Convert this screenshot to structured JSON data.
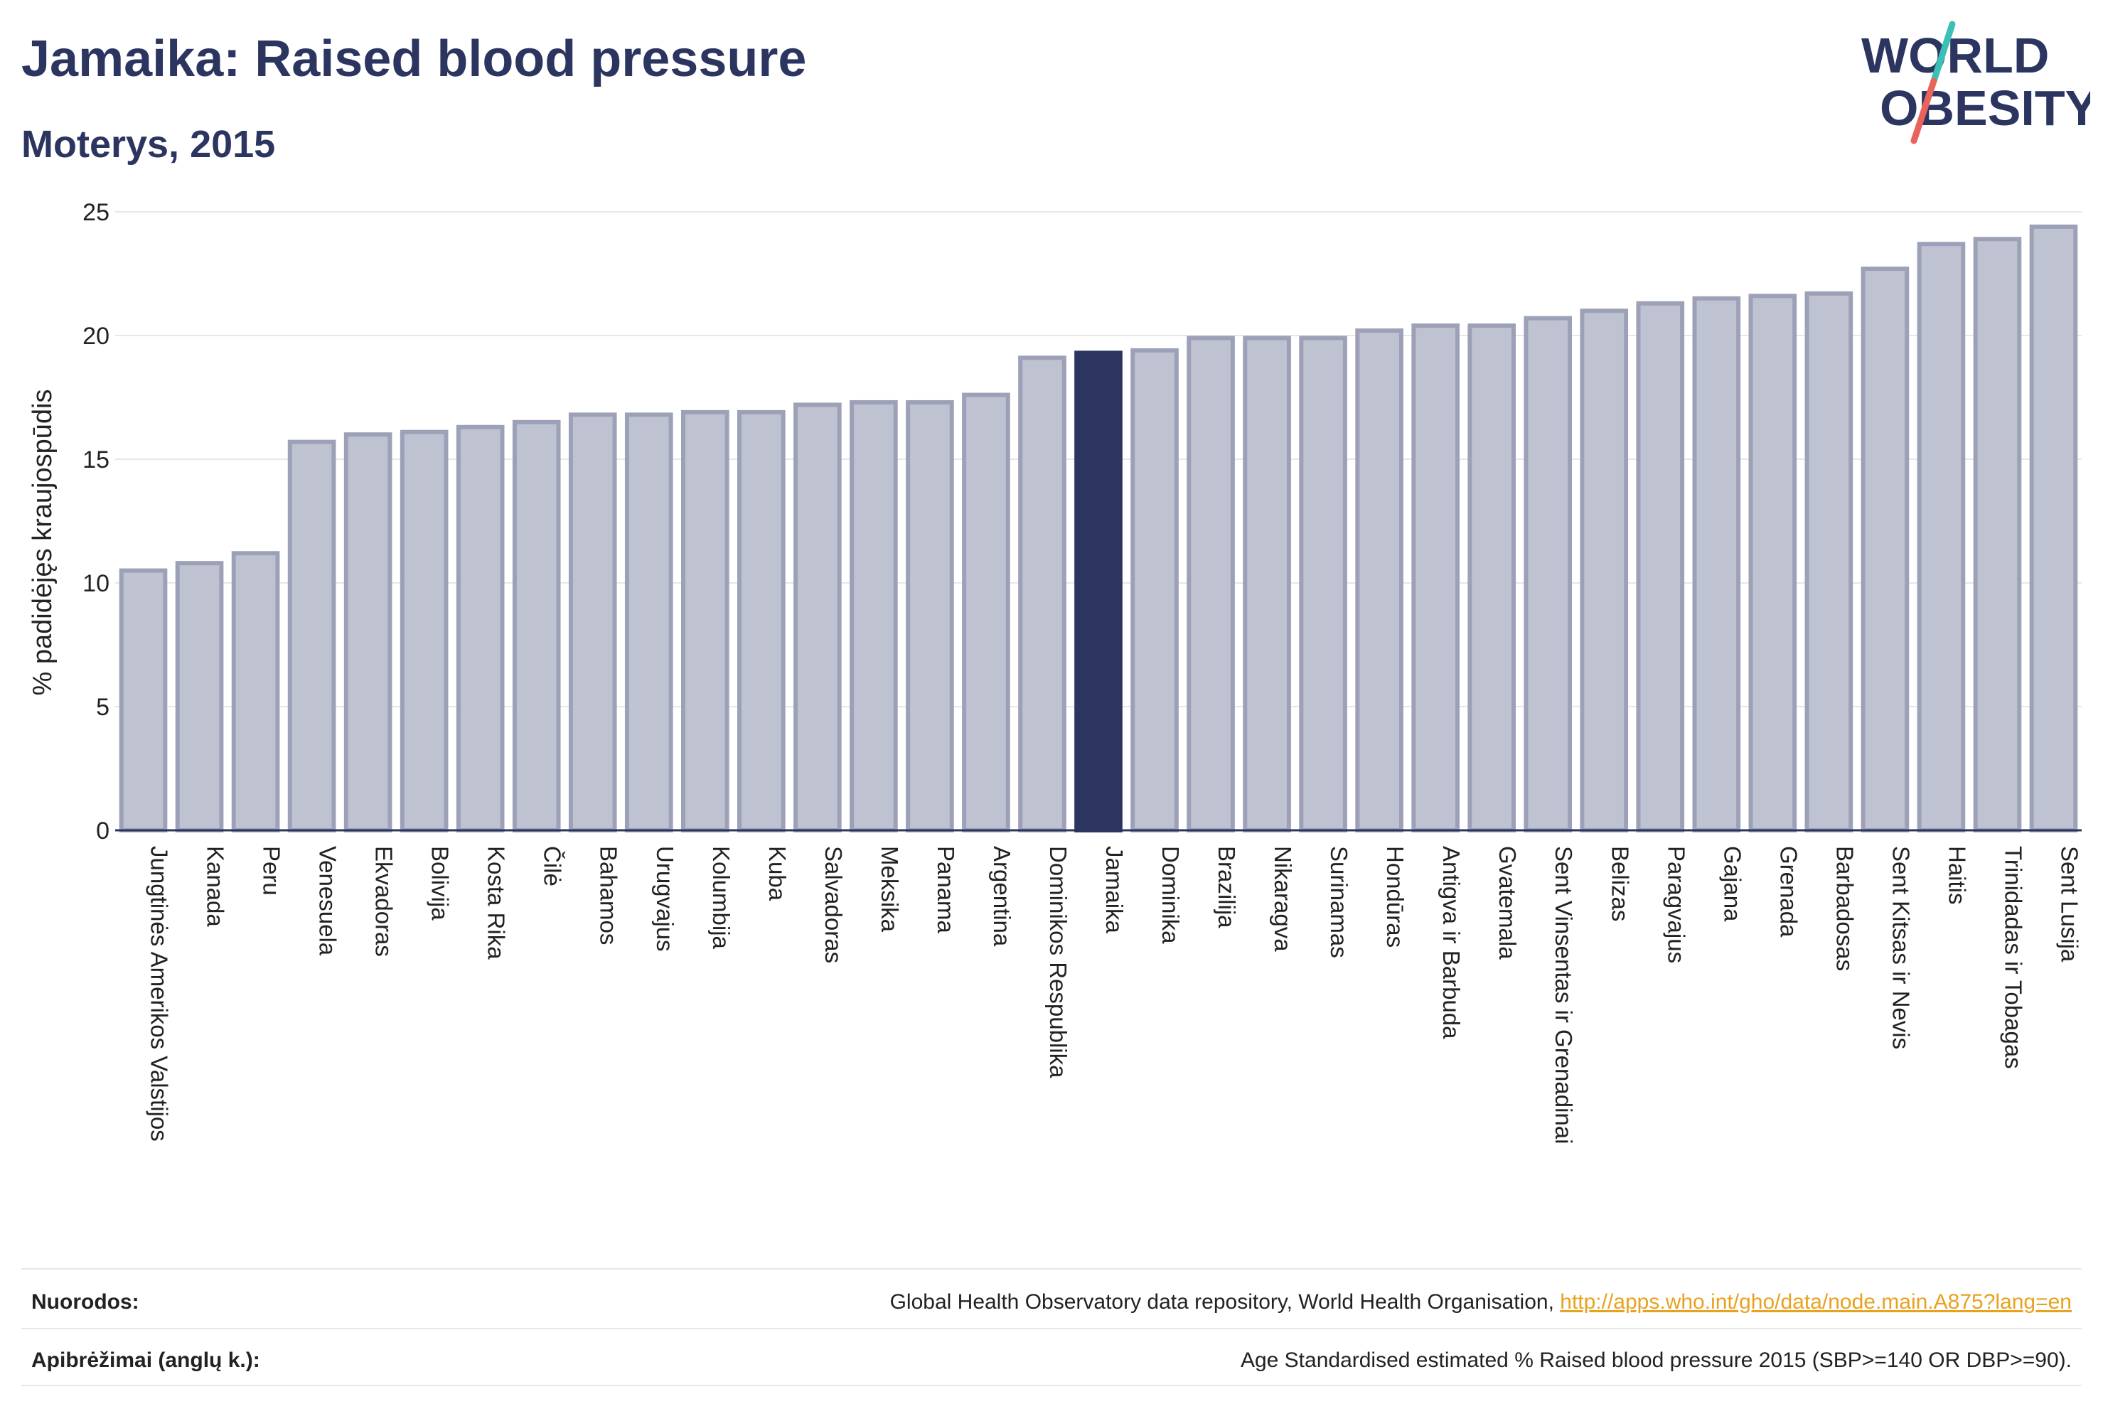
{
  "header": {
    "title": "Jamaika: Raised blood pressure",
    "subtitle": "Moterys, 2015"
  },
  "logo": {
    "line1": "WORLD",
    "line2": "OBESITY",
    "icon": "world-obesity-logo",
    "slash_colors": [
      "#3cbfb4",
      "#e8645a"
    ]
  },
  "colors": {
    "bar": "#bfc2d0",
    "bar_border": "#9da1b8",
    "highlight_bar": "#2b3560",
    "title": "#2b3560",
    "link": "#e8a21f"
  },
  "chart_data": {
    "type": "bar",
    "ylabel": "% padidėjęs kraujospūdis",
    "ylim": [
      0,
      25
    ],
    "yticks": [
      0,
      5,
      10,
      15,
      20,
      25
    ],
    "grid": true,
    "highlight": "Jamaika",
    "categories": [
      "Jungtinės Amerikos Valstijos",
      "Kanada",
      "Peru",
      "Venesuela",
      "Ekvadoras",
      "Bolivija",
      "Kosta Rika",
      "Čilė",
      "Bahamos",
      "Urugvajus",
      "Kolumbija",
      "Kuba",
      "Salvadoras",
      "Meksika",
      "Panama",
      "Argentina",
      "Dominikos Respublika",
      "Jamaika",
      "Dominika",
      "Brazilija",
      "Nikaragva",
      "Surinamas",
      "Hondūras",
      "Antigva ir Barbuda",
      "Gvatemala",
      "Sent Vinsentas ir Grenadinai",
      "Belizas",
      "Paragvajus",
      "Gajana",
      "Grenada",
      "Barbadosas",
      "Sent Kitsas ir Nevis",
      "Haitis",
      "Trinidadas ir Tobagas",
      "Sent Lusija"
    ],
    "values": [
      10.5,
      10.8,
      11.2,
      15.7,
      16.0,
      16.1,
      16.3,
      16.5,
      16.8,
      16.8,
      16.9,
      16.9,
      17.2,
      17.3,
      17.3,
      17.6,
      19.1,
      19.3,
      19.4,
      19.9,
      19.9,
      19.9,
      20.2,
      20.4,
      20.4,
      20.7,
      21.0,
      21.3,
      21.5,
      21.6,
      21.7,
      22.7,
      23.7,
      23.9,
      24.4
    ]
  },
  "footer": {
    "sources_label": "Nuorodos:",
    "sources_text": "Global Health Observatory data repository, World Health Organisation, ",
    "sources_link": "http://apps.who.int/gho/data/node.main.A875?lang=en",
    "definitions_label": "Apibrėžimai (anglų k.):",
    "definitions_text": "Age Standardised estimated % Raised blood pressure 2015 (SBP>=140 OR DBP>=90)."
  }
}
